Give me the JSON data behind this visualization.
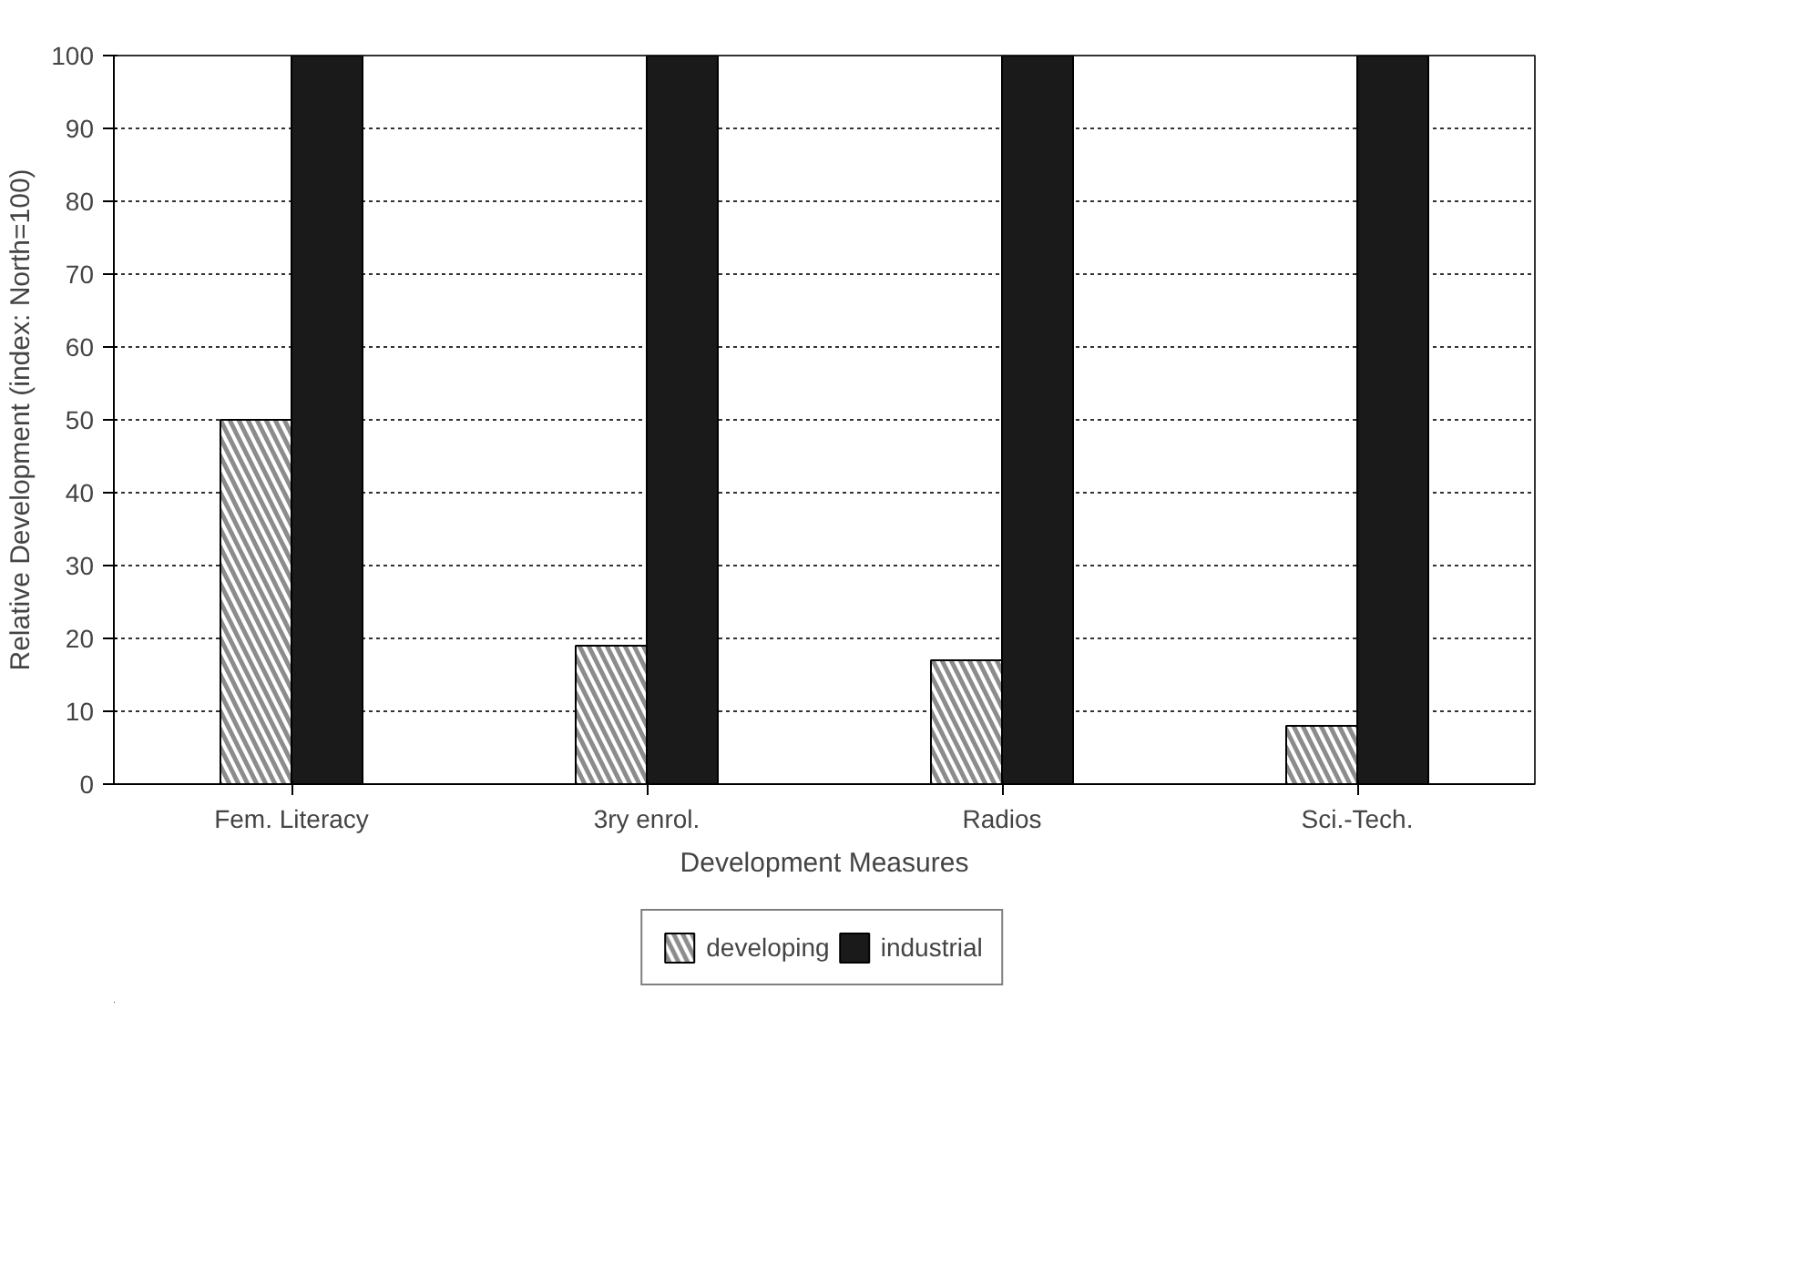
{
  "chart_data": {
    "type": "bar",
    "xlabel": "Development Measures",
    "ylabel": "Relative Development (index: North=100)",
    "categories": [
      "Fem. Literacy",
      "3ry enrol.",
      "Radios",
      "Sci.-Tech."
    ],
    "series": [
      {
        "name": "developing",
        "color": "#8c8c8c",
        "values": [
          50,
          19,
          17,
          8
        ]
      },
      {
        "name": "industrial",
        "color": "#1a1a1a",
        "values": [
          100,
          100,
          100,
          100
        ]
      }
    ],
    "ylim": [
      0,
      100
    ],
    "yticks": [
      0,
      10,
      20,
      30,
      40,
      50,
      60,
      70,
      80,
      90,
      100
    ],
    "grid": "y",
    "legend": "bottom"
  }
}
